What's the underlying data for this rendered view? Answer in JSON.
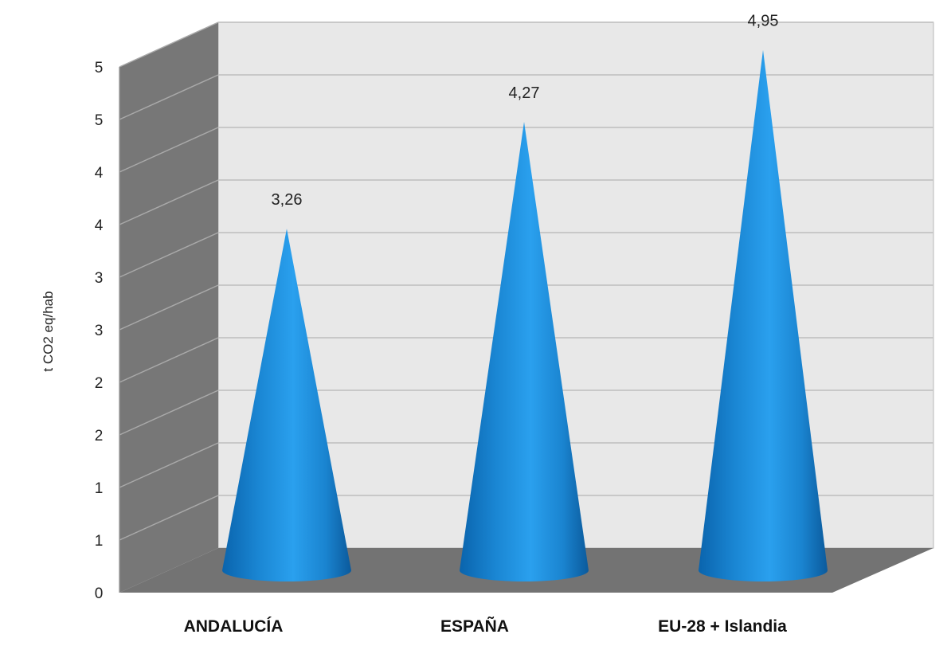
{
  "chart_data": {
    "type": "bar",
    "bar_shape": "cone",
    "view": "3d",
    "categories": [
      "ANDALUCÍA",
      "ESPAÑA",
      "EU-28 + Islandia"
    ],
    "values": [
      3.26,
      4.27,
      4.95
    ],
    "value_labels": [
      "3,26",
      "4,27",
      "4,95"
    ],
    "ylabel": "t CO2 eq/hab",
    "y_ticks": [
      0,
      0.5,
      1,
      1.5,
      2,
      2.5,
      3,
      3.5,
      4,
      4.5,
      5
    ],
    "y_tick_labels": [
      "0",
      "1",
      "1",
      "2",
      "2",
      "3",
      "3",
      "4",
      "4",
      "5",
      "5"
    ],
    "ylim": [
      0,
      5
    ],
    "grid": true,
    "legend": "none",
    "colors": {
      "cone": "#1f8fd8",
      "cone_dark": "#0b5fa3",
      "back_wall": "#e8e8e8",
      "side_wall": "#777777",
      "floor": "#737373",
      "grid": "#c8c8c8"
    }
  }
}
